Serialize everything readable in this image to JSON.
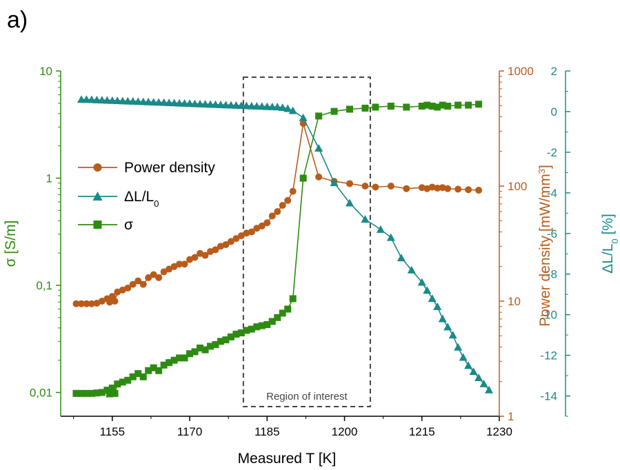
{
  "panel_label": "a)",
  "chart_data": {
    "type": "line",
    "x_label": "Measured T [K]",
    "x_ticks": [
      1155,
      1170,
      1185,
      1200,
      1215,
      1230
    ],
    "xlim": [
      1145,
      1230
    ],
    "grid": false,
    "legend_position": "middle-left",
    "annotation": "Region of interest",
    "region_of_interest": [
      1180,
      1205
    ],
    "axes": {
      "sigma": {
        "label": "σ [S/m]",
        "scale": "log",
        "range": [
          0.006,
          10
        ],
        "ticks": [
          10,
          1,
          0.1,
          0.01
        ],
        "tick_labels": [
          "10",
          "1",
          "0,1",
          "0,01"
        ],
        "color": "#2e8b12"
      },
      "power": {
        "label": "Power density [mW/mm³]",
        "label_main": "Power density [mW/mm",
        "label_sup": "3",
        "label_end": "]",
        "scale": "log",
        "range": [
          1,
          1000
        ],
        "ticks": [
          1000,
          100,
          10,
          1
        ],
        "tick_labels": [
          "1000",
          "100",
          "10",
          "1"
        ],
        "color": "#b85c1c"
      },
      "dl": {
        "label": "ΔL/L₀ [%]",
        "label_pre": "ΔL/L",
        "label_sub": "0",
        "label_end": " [%]",
        "scale": "linear",
        "range": [
          -15,
          2
        ],
        "ticks": [
          2,
          0,
          -2,
          -4,
          -6,
          -8,
          -10,
          -12,
          -14
        ],
        "tick_labels": [
          "2",
          "0",
          "-2",
          "-4",
          "-6",
          "-8",
          "-10",
          "-12",
          "-14"
        ],
        "color": "#1a8a8a"
      }
    },
    "series": [
      {
        "name": "Power density",
        "legend_label": "Power density",
        "axis": "power",
        "marker": "circle",
        "color": "#b85c1c",
        "x": [
          1148,
          1149,
          1150,
          1151,
          1152,
          1153,
          1154,
          1154.5,
          1155,
          1155.5,
          1156,
          1157,
          1158,
          1159,
          1160,
          1161,
          1162,
          1163,
          1164,
          1165,
          1166,
          1167,
          1168,
          1169,
          1170,
          1171,
          1172,
          1173,
          1174,
          1175,
          1176,
          1177,
          1178,
          1179,
          1180,
          1181,
          1182,
          1183,
          1184,
          1185,
          1186,
          1187,
          1188,
          1189,
          1190,
          1192,
          1195,
          1198,
          1201,
          1204,
          1206,
          1209,
          1212,
          1215,
          1216,
          1217,
          1218,
          1219,
          1220,
          1222,
          1224,
          1226
        ],
        "y": [
          9.5,
          9.5,
          9.5,
          9.5,
          9.6,
          10,
          10.5,
          9.8,
          11,
          10,
          12,
          12.5,
          13,
          14,
          15,
          14,
          16,
          17,
          16,
          18,
          19,
          20,
          21,
          21,
          23,
          24,
          26,
          25,
          27,
          28,
          30,
          31,
          33,
          35,
          37,
          39,
          40,
          43,
          45,
          48,
          55,
          60,
          68,
          75,
          90,
          350,
          120,
          110,
          105,
          100,
          98,
          100,
          95,
          97,
          95,
          98,
          96,
          97,
          95,
          94,
          93,
          92
        ]
      },
      {
        "name": "ΔL/L₀",
        "legend_label_pre": "ΔL/L",
        "legend_label_sub": "0",
        "axis": "dl",
        "marker": "triangle",
        "color": "#1a8a8a",
        "x": [
          1149,
          1150,
          1151,
          1152,
          1153,
          1154,
          1155,
          1156,
          1157,
          1158,
          1159,
          1160,
          1161,
          1162,
          1163,
          1164,
          1165,
          1166,
          1167,
          1168,
          1169,
          1170,
          1171,
          1172,
          1173,
          1174,
          1175,
          1176,
          1177,
          1178,
          1179,
          1180,
          1181,
          1182,
          1183,
          1184,
          1185,
          1186,
          1187,
          1188,
          1189,
          1190,
          1192,
          1195,
          1198,
          1201,
          1204,
          1207,
          1209,
          1211,
          1213,
          1215,
          1216,
          1217,
          1218,
          1219,
          1220,
          1221,
          1222,
          1223,
          1224,
          1225,
          1226,
          1227,
          1228
        ],
        "y": [
          0.6,
          0.6,
          0.59,
          0.58,
          0.57,
          0.56,
          0.55,
          0.54,
          0.53,
          0.52,
          0.51,
          0.5,
          0.49,
          0.48,
          0.47,
          0.46,
          0.45,
          0.44,
          0.43,
          0.42,
          0.41,
          0.4,
          0.39,
          0.38,
          0.37,
          0.36,
          0.35,
          0.34,
          0.33,
          0.32,
          0.31,
          0.3,
          0.29,
          0.28,
          0.27,
          0.26,
          0.25,
          0.24,
          0.23,
          0.2,
          0.15,
          0.05,
          -0.3,
          -1.8,
          -3.5,
          -4.5,
          -5.3,
          -5.8,
          -6.2,
          -7.2,
          -7.8,
          -8.4,
          -8.8,
          -9.2,
          -9.6,
          -10.2,
          -10.6,
          -11.0,
          -11.6,
          -12.1,
          -12.5,
          -12.8,
          -13.1,
          -13.4,
          -13.7
        ]
      },
      {
        "name": "σ",
        "legend_label": "σ",
        "axis": "sigma",
        "marker": "square",
        "color": "#2e8b12",
        "x": [
          1148,
          1149,
          1150,
          1151,
          1152,
          1153,
          1154,
          1154.5,
          1155,
          1155.5,
          1156,
          1157,
          1158,
          1159,
          1160,
          1161,
          1162,
          1163,
          1164,
          1165,
          1166,
          1167,
          1168,
          1169,
          1170,
          1171,
          1172,
          1173,
          1174,
          1175,
          1176,
          1177,
          1178,
          1179,
          1180,
          1181,
          1182,
          1183,
          1184,
          1185,
          1186,
          1187,
          1188,
          1189,
          1190,
          1192,
          1195,
          1198,
          1201,
          1204,
          1206,
          1209,
          1212,
          1215,
          1216,
          1217,
          1218,
          1219,
          1220,
          1222,
          1224,
          1226
        ],
        "y": [
          0.0098,
          0.0098,
          0.0098,
          0.0098,
          0.0099,
          0.01,
          0.0105,
          0.0097,
          0.011,
          0.0098,
          0.012,
          0.0125,
          0.013,
          0.014,
          0.015,
          0.014,
          0.016,
          0.017,
          0.016,
          0.018,
          0.019,
          0.02,
          0.021,
          0.021,
          0.023,
          0.024,
          0.026,
          0.025,
          0.027,
          0.028,
          0.03,
          0.031,
          0.033,
          0.035,
          0.036,
          0.038,
          0.039,
          0.041,
          0.042,
          0.043,
          0.046,
          0.05,
          0.055,
          0.06,
          0.075,
          1.0,
          3.8,
          4.2,
          4.4,
          4.5,
          4.6,
          4.7,
          4.6,
          4.7,
          4.8,
          4.7,
          4.6,
          4.8,
          4.7,
          4.8,
          4.8,
          4.9
        ]
      }
    ]
  }
}
